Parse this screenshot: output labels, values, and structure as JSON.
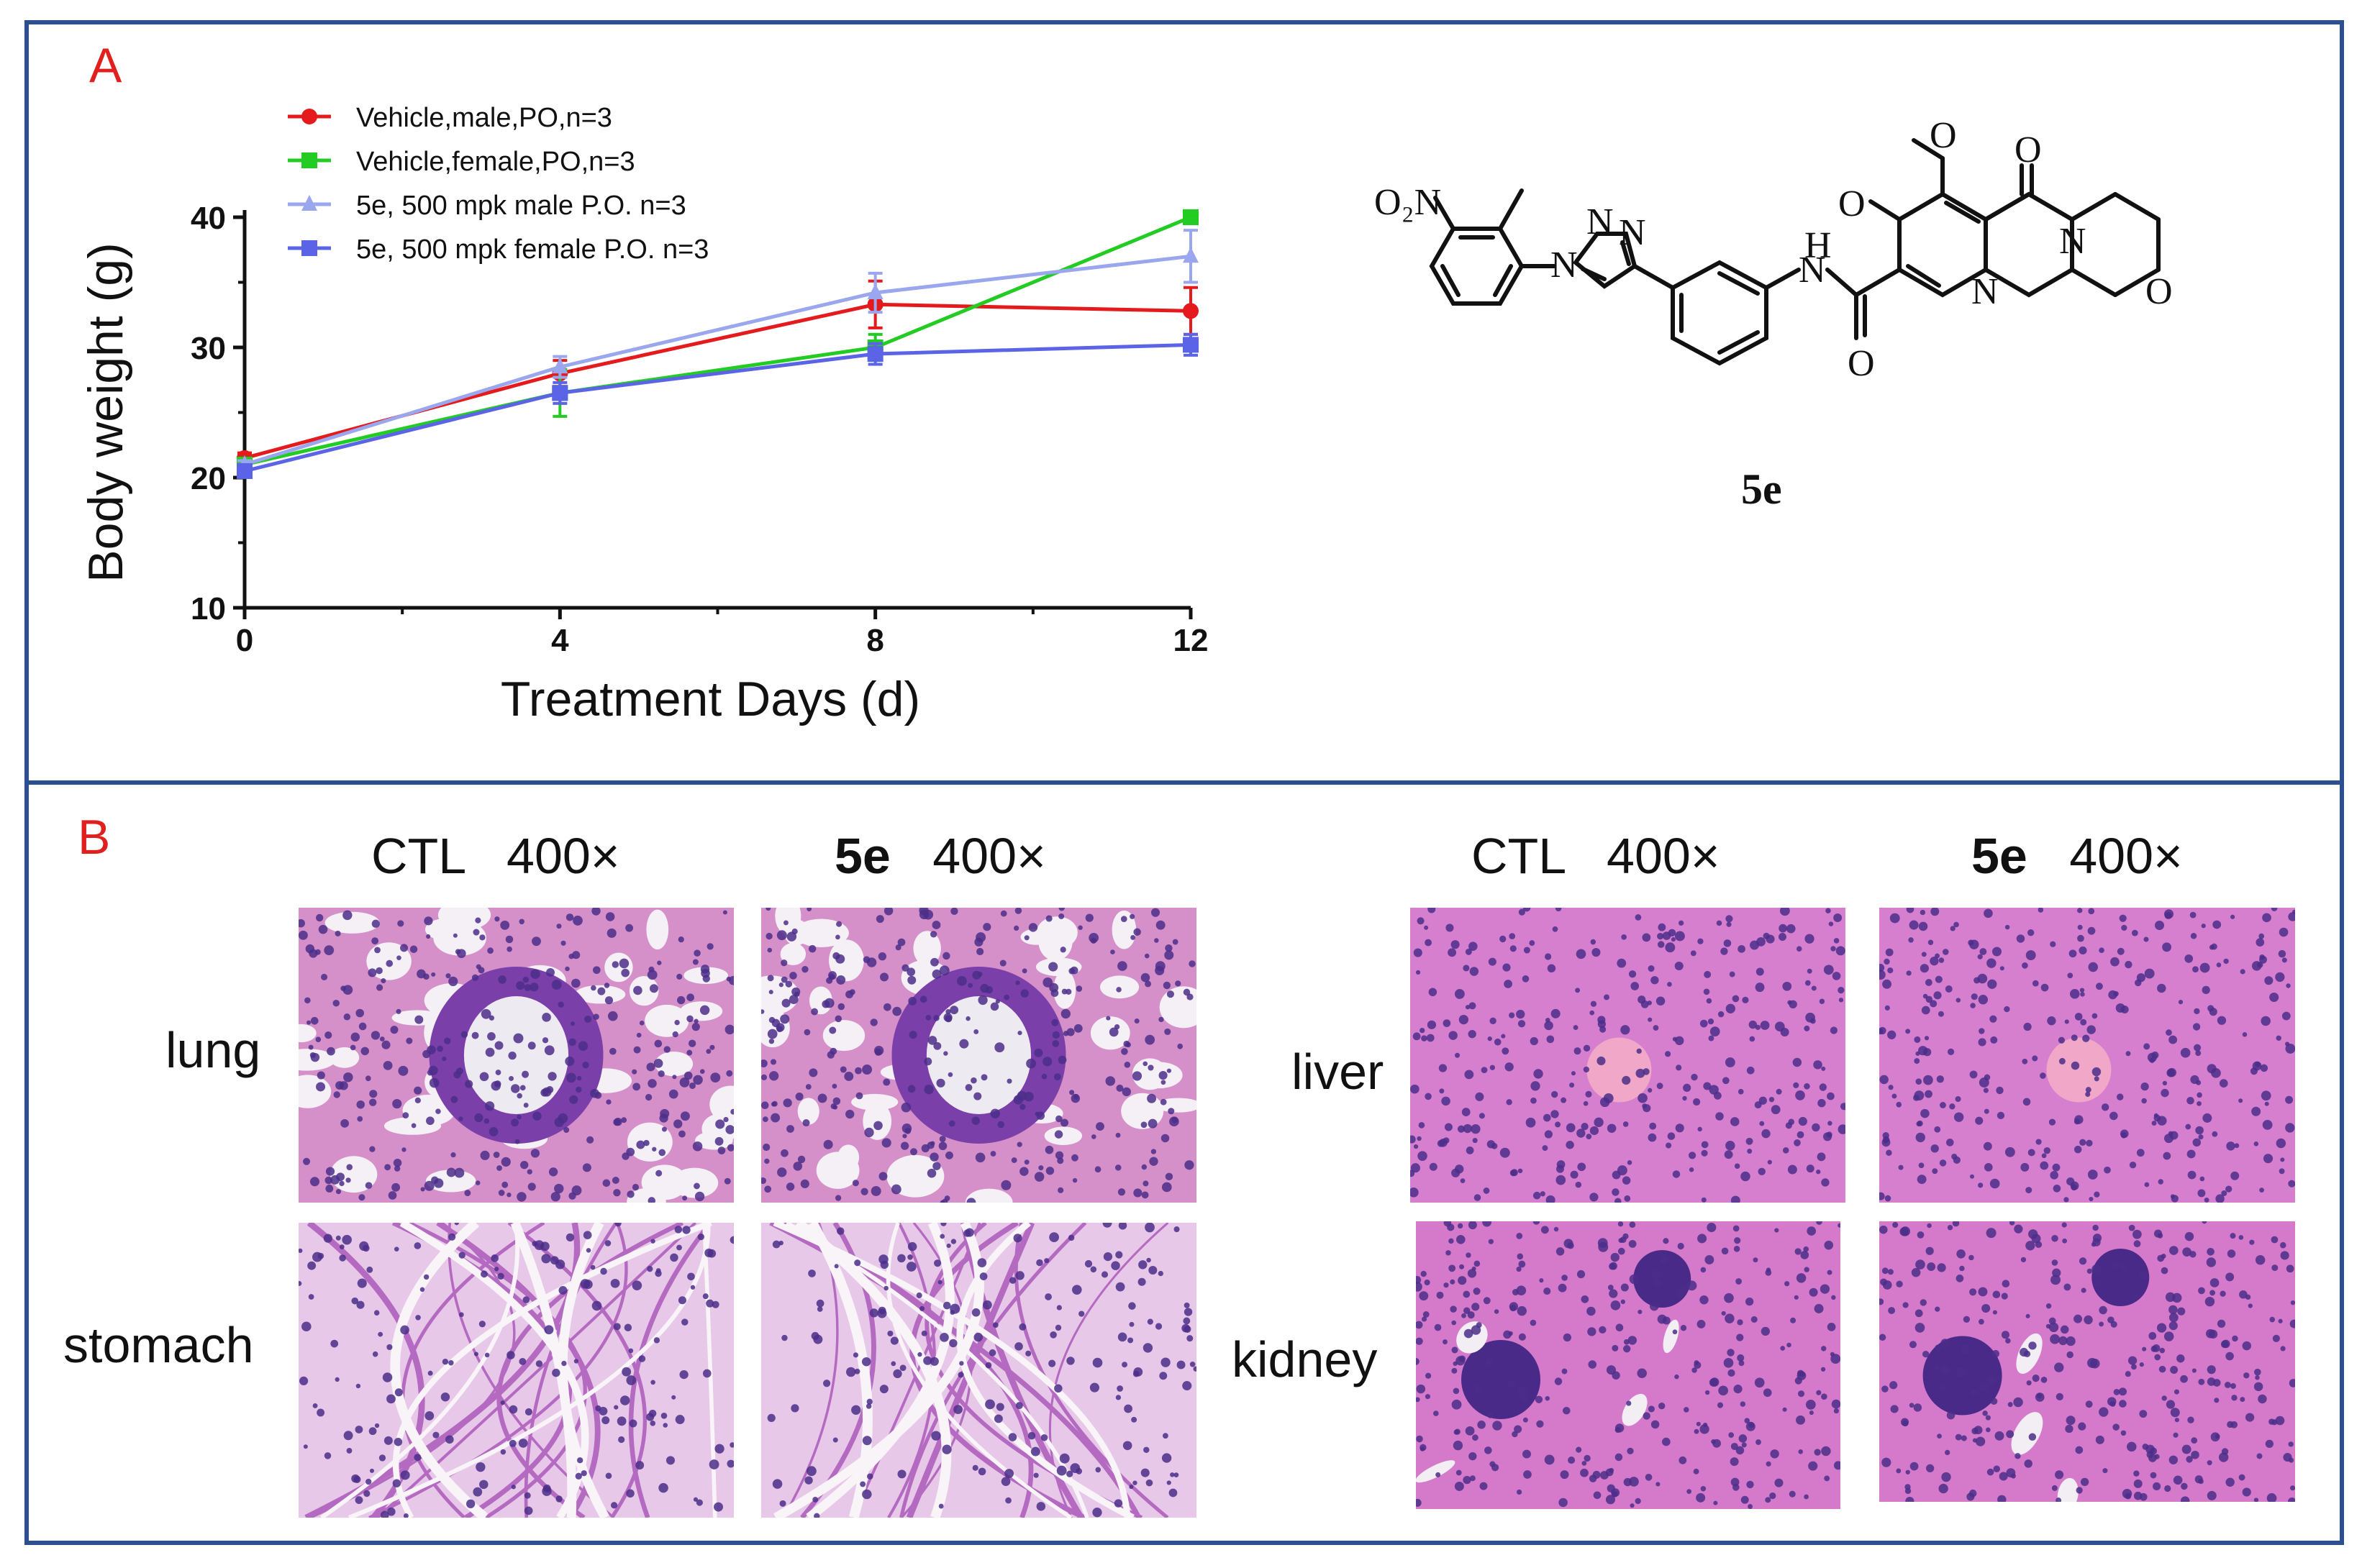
{
  "panel_a": {
    "label": "A",
    "compound_label": "5e",
    "structure_atoms": {
      "o2n": "O₂N",
      "n1": "N",
      "n2": "N",
      "n3": "N",
      "nh_h": "H",
      "nh_n": "N",
      "o_amide": "O",
      "o_keto": "O",
      "o_methoxy": "O",
      "o_lactam": "O",
      "n_pyr": "N",
      "n_lactam": "N",
      "o_ring": "O"
    }
  },
  "chart_data": {
    "type": "line",
    "xlabel": "Treatment Days (d)",
    "ylabel": "Body weight (g)",
    "x": [
      0,
      4,
      8,
      12
    ],
    "xlim": [
      0,
      12
    ],
    "ylim": [
      10,
      40
    ],
    "xticks": [
      0,
      4,
      8,
      12
    ],
    "yticks": [
      10,
      20,
      30,
      40
    ],
    "grid": false,
    "legend_position": "top-left",
    "series": [
      {
        "name": "Vehicle,male,PO,n=3",
        "color": "#e41a1c",
        "marker": "circle",
        "values": [
          21.5,
          28,
          33.3,
          32.8
        ],
        "errors": [
          0.4,
          1.0,
          1.8,
          1.8
        ]
      },
      {
        "name": "Vehicle,female,PO,n=3",
        "color": "#22cc22",
        "marker": "square",
        "values": [
          21,
          26.5,
          30,
          40
        ],
        "errors": [
          0.3,
          1.8,
          1.0,
          0.4
        ]
      },
      {
        "name": "5e, 500 mpk male P.O. n=3",
        "color": "#9aa6ee",
        "marker": "triangle",
        "values": [
          21,
          28.5,
          34.2,
          37
        ],
        "errors": [
          0.3,
          0.8,
          1.5,
          2.0
        ]
      },
      {
        "name": "5e, 500 mpk female P.O. n=3",
        "color": "#5b63e6",
        "marker": "square",
        "values": [
          20.5,
          26.5,
          29.5,
          30.2
        ],
        "errors": [
          0.3,
          0.8,
          0.8,
          0.8
        ]
      }
    ]
  },
  "panel_b": {
    "label": "B",
    "headers": [
      {
        "name": "CTL",
        "mag": "400×",
        "bold": false
      },
      {
        "name": "5e",
        "mag": "400×",
        "bold": true
      },
      {
        "name": "CTL",
        "mag": "400×",
        "bold": false
      },
      {
        "name": "5e",
        "mag": "400×",
        "bold": true
      }
    ],
    "rows_left": [
      "lung",
      "stomach"
    ],
    "rows_right": [
      "liver",
      "kidney"
    ]
  }
}
